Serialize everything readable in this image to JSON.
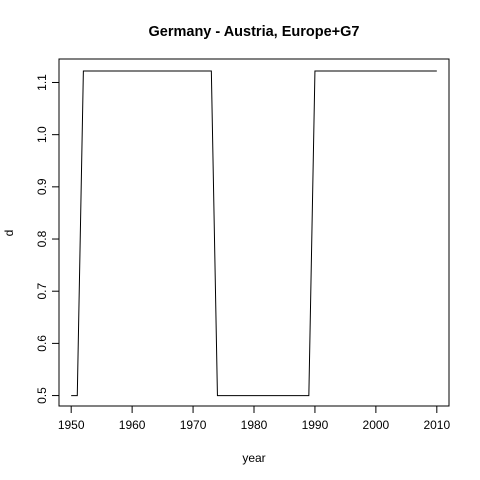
{
  "chart_data": {
    "type": "line",
    "title": "Germany - Austria, Europe+G7",
    "xlabel": "year",
    "ylabel": "d",
    "xlim": [
      1948,
      2012
    ],
    "ylim": [
      0.48,
      1.145
    ],
    "x_ticks": [
      "1950",
      "1960",
      "1970",
      "1980",
      "1990",
      "2000",
      "2010"
    ],
    "y_ticks": [
      "0.5",
      "0.6",
      "0.7",
      "0.8",
      "0.9",
      "1.0",
      "1.1"
    ],
    "grid": false,
    "series": [
      {
        "color": "#000000",
        "x": [
          1950,
          1951,
          1952,
          1973,
          1974,
          1989,
          1990,
          2010
        ],
        "y": [
          0.5,
          0.5,
          1.122,
          1.122,
          0.5,
          0.5,
          1.122,
          1.122
        ]
      }
    ]
  }
}
